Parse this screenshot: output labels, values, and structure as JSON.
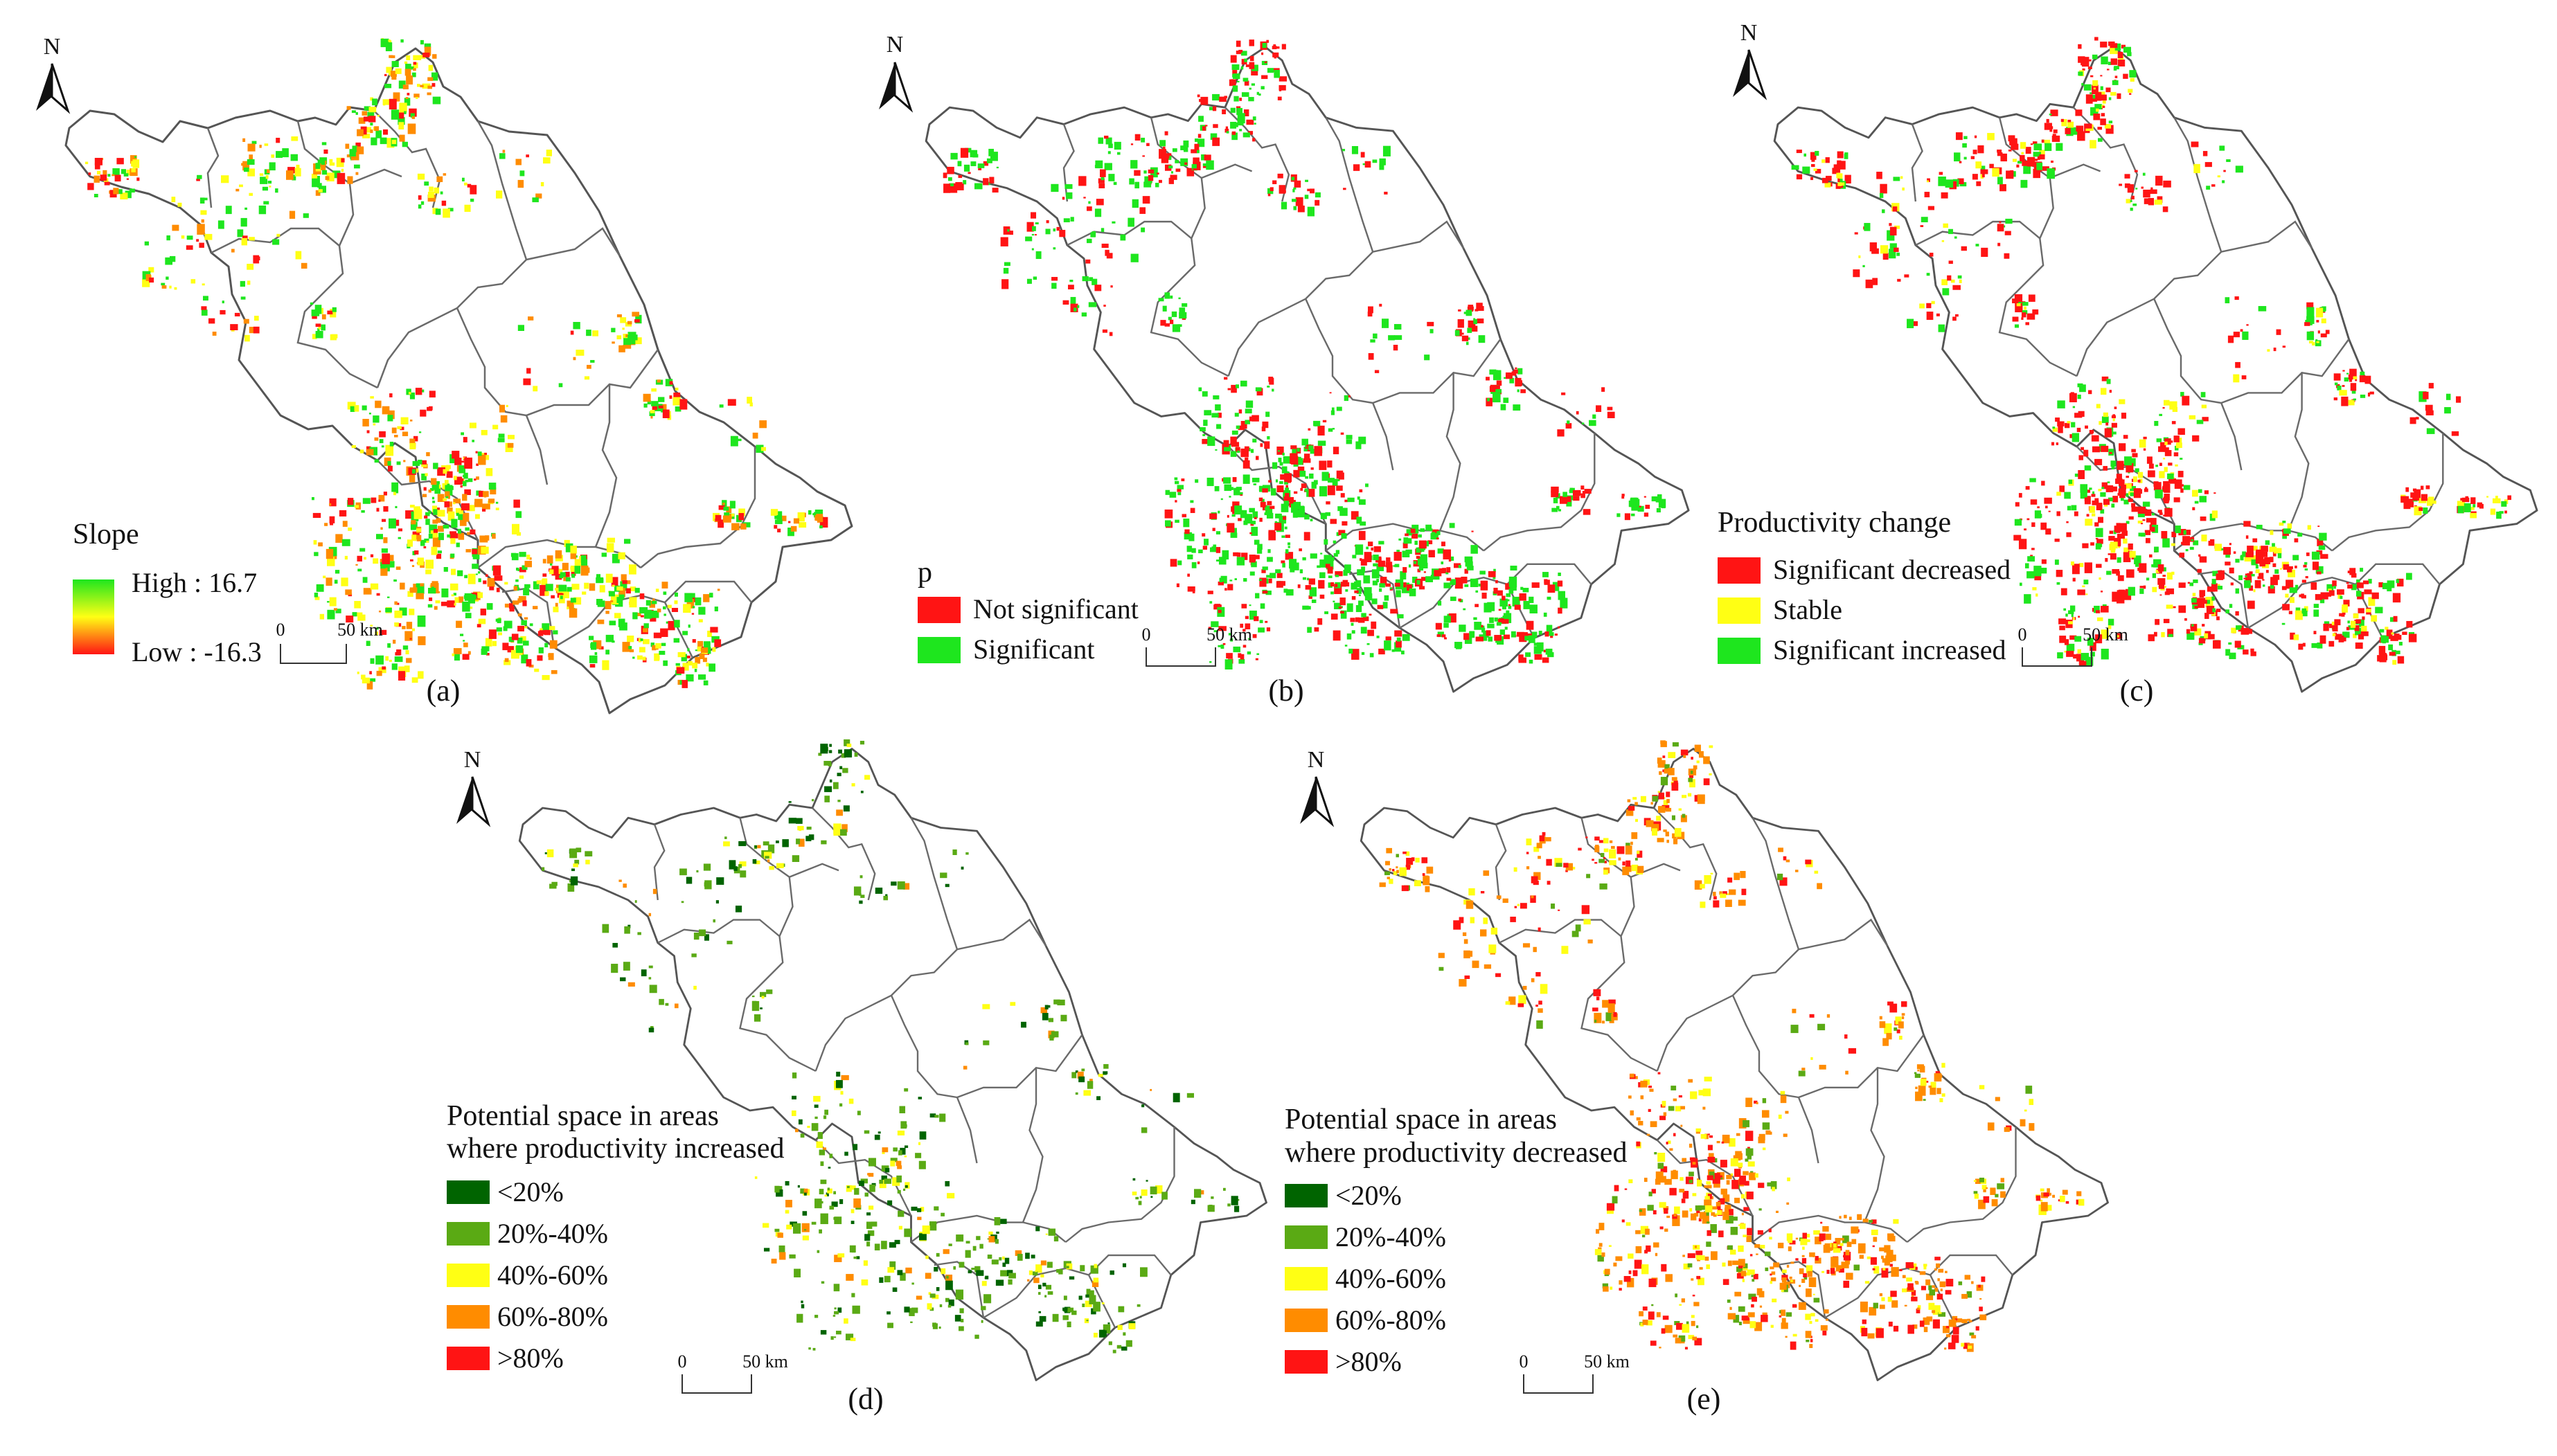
{
  "figure": {
    "north_letter": "N",
    "scale": {
      "zero": "0",
      "dist": "50 km"
    }
  },
  "colors": {
    "green": "#1ee61e",
    "red": "#ff1414",
    "yellow": "#ffff14",
    "orange": "#ff8c00",
    "dark_green": "#006400",
    "mid_green": "#5aaa14",
    "boundary": "#555555"
  },
  "panels": [
    {
      "id": "a",
      "label": "(a)",
      "legend": {
        "type": "gradient",
        "title": "Slope",
        "high_label": "High : 16.7",
        "low_label": "Low : -16.3",
        "high_value": 16.7,
        "low_value": -16.3
      }
    },
    {
      "id": "b",
      "label": "(b)",
      "legend": {
        "type": "classes",
        "title": "p",
        "items": [
          {
            "label": "Not significant",
            "color": "#ff1414"
          },
          {
            "label": "Significant",
            "color": "#1ee61e"
          }
        ]
      }
    },
    {
      "id": "c",
      "label": "(c)",
      "legend": {
        "type": "classes",
        "title": "Productivity change",
        "items": [
          {
            "label": "Significant decreased",
            "color": "#ff1414"
          },
          {
            "label": "Stable",
            "color": "#ffff14"
          },
          {
            "label": "Significant increased",
            "color": "#1ee61e"
          }
        ]
      }
    },
    {
      "id": "d",
      "label": "(d)",
      "legend": {
        "type": "classes",
        "title_lines": [
          "Potential space in areas",
          "where productivity increased"
        ],
        "items": [
          {
            "label": "<20%",
            "color": "#006400"
          },
          {
            "label": "20%-40%",
            "color": "#5aaa14"
          },
          {
            "label": "40%-60%",
            "color": "#ffff14"
          },
          {
            "label": "60%-80%",
            "color": "#ff8c00"
          },
          {
            "label": ">80%",
            "color": "#ff1414"
          }
        ]
      }
    },
    {
      "id": "e",
      "label": "(e)",
      "legend": {
        "type": "classes",
        "title_lines": [
          "Potential space in areas",
          "where productivity decreased"
        ],
        "items": [
          {
            "label": "<20%",
            "color": "#006400"
          },
          {
            "label": "20%-40%",
            "color": "#5aaa14"
          },
          {
            "label": "40%-60%",
            "color": "#ffff14"
          },
          {
            "label": "60%-80%",
            "color": "#ff8c00"
          },
          {
            "label": ">80%",
            "color": "#ff1414"
          }
        ]
      }
    }
  ]
}
